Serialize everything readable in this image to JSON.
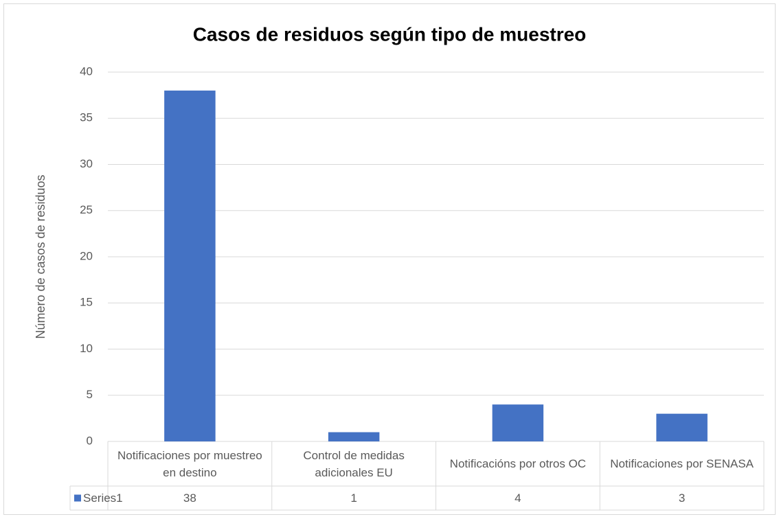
{
  "chart_data": {
    "type": "bar",
    "title": "Casos de residuos según tipo de muestreo",
    "y_label": "Número de casos de residuos",
    "categories": [
      "Notificaciones por muestreo en destino",
      "Control de medidas adicionales EU",
      "Notificacións por otros OC",
      "Notificaciones por SENASA"
    ],
    "series": [
      {
        "name": "Series1",
        "color": "#4472c4",
        "values": [
          38,
          1,
          4,
          3
        ]
      }
    ],
    "ylim": [
      0,
      40
    ],
    "yticks": [
      0,
      5,
      10,
      15,
      20,
      25,
      30,
      35,
      40
    ],
    "grid": true
  }
}
